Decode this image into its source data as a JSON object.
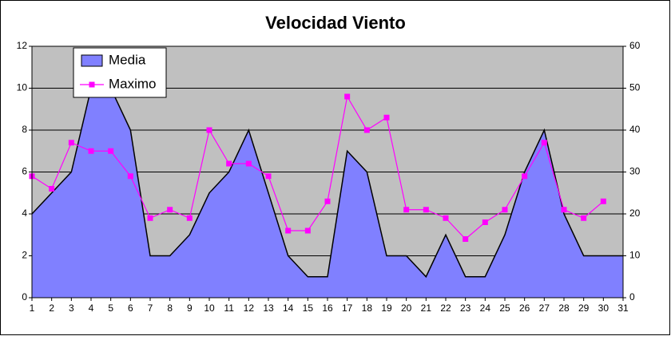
{
  "chart_data": {
    "type": "area-line",
    "title": "Velocidad Viento",
    "categories": [
      1,
      2,
      3,
      4,
      5,
      6,
      7,
      8,
      9,
      10,
      11,
      12,
      13,
      14,
      15,
      16,
      17,
      18,
      19,
      20,
      21,
      22,
      23,
      24,
      25,
      26,
      27,
      28,
      29,
      30,
      31
    ],
    "series": [
      {
        "name": "Media",
        "type": "area",
        "color": "#8080ff",
        "axis": "y",
        "values": [
          4,
          5,
          6,
          10,
          10,
          8,
          2,
          2,
          3,
          5,
          6,
          8,
          5,
          2,
          1,
          1,
          7,
          6,
          2,
          2,
          1,
          3,
          1,
          1,
          3,
          6,
          8,
          4,
          2,
          2,
          2
        ]
      },
      {
        "name": "Maximo",
        "type": "line",
        "color": "#ff00ff",
        "axis": "y2",
        "values": [
          29,
          26,
          37,
          35,
          35,
          29,
          19,
          21,
          19,
          40,
          32,
          32,
          29,
          16,
          16,
          23,
          48,
          40,
          43,
          21,
          21,
          19,
          14,
          18,
          21,
          29,
          37,
          21,
          19,
          23,
          null
        ]
      }
    ],
    "ylim": [
      0,
      12
    ],
    "yticks": [
      0,
      2,
      4,
      6,
      8,
      10,
      12
    ],
    "y2lim": [
      0,
      60
    ],
    "y2ticks": [
      0,
      10,
      20,
      30,
      40,
      50,
      60
    ],
    "grid": true,
    "legend": "top-left",
    "background": "#c0c0c0"
  }
}
